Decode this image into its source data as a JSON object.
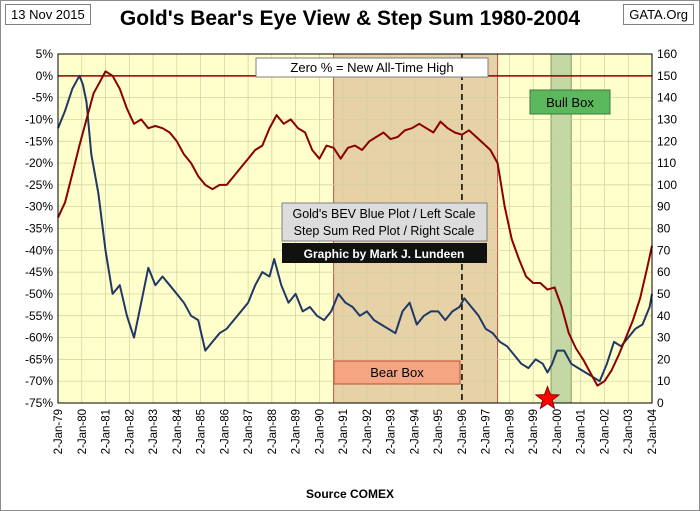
{
  "header": {
    "date": "13 Nov 2015",
    "title": "Gold's Bear's Eye View & Step Sum 1980-2004",
    "source_tag": "GATA.Org"
  },
  "footer": {
    "source": "Source COMEX"
  },
  "annotations": {
    "zero_note": "Zero % = New All-Time High",
    "bull_box": "Bull Box",
    "bear_box": "Bear Box",
    "legend_line1": "Gold's BEV Blue Plot / Left Scale",
    "legend_line2": "Step Sum Red Plot / Right Scale",
    "credit": "Graphic by Mark J. Lundeen"
  },
  "colors": {
    "plot_bg": "#ffffcc",
    "bear_box_fill": "#e6d2a6",
    "bull_box_fill": "#c4d8a6",
    "bev_line": "#1f3864",
    "step_line": "#8b0000",
    "bull_label_bg": "#5cb85c",
    "bear_label_bg": "#f4a582",
    "star": "#ff0000"
  },
  "chart_data": {
    "type": "line",
    "x_ticks": [
      "2-Jan-79",
      "2-Jan-80",
      "2-Jan-81",
      "2-Jan-82",
      "2-Jan-83",
      "2-Jan-84",
      "2-Jan-85",
      "2-Jan-86",
      "2-Jan-87",
      "2-Jan-88",
      "2-Jan-89",
      "2-Jan-90",
      "2-Jan-91",
      "2-Jan-92",
      "2-Jan-93",
      "2-Jan-94",
      "2-Jan-95",
      "2-Jan-96",
      "2-Jan-97",
      "2-Jan-98",
      "2-Jan-99",
      "2-Jan-00",
      "2-Jan-01",
      "2-Jan-02",
      "2-Jan-03",
      "2-Jan-04"
    ],
    "x_range": [
      1979,
      2004
    ],
    "left_axis": {
      "range": [
        -75,
        5
      ],
      "ticks": [
        "5%",
        "0%",
        "-5%",
        "-10%",
        "-15%",
        "-20%",
        "-25%",
        "-30%",
        "-35%",
        "-40%",
        "-45%",
        "-50%",
        "-55%",
        "-60%",
        "-65%",
        "-70%",
        "-75%"
      ]
    },
    "right_axis": {
      "range": [
        0,
        160
      ],
      "ticks": [
        "160",
        "150",
        "140",
        "130",
        "120",
        "110",
        "100",
        "90",
        "80",
        "70",
        "60",
        "50",
        "40",
        "30",
        "20",
        "10",
        "0"
      ]
    },
    "regions": {
      "bear_box": [
        1990.6,
        1997.5
      ],
      "bull_box": [
        1999.75,
        2000.6
      ],
      "dashed_line_x": 1996.0,
      "star": {
        "x": 1999.6,
        "y_pct": -74
      }
    },
    "series": [
      {
        "name": "Gold's BEV",
        "axis": "left",
        "x": [
          1979.0,
          1979.3,
          1979.6,
          1979.9,
          1980.05,
          1980.2,
          1980.4,
          1980.7,
          1981.0,
          1981.3,
          1981.6,
          1981.9,
          1982.2,
          1982.5,
          1982.8,
          1983.1,
          1983.4,
          1983.7,
          1984.0,
          1984.3,
          1984.6,
          1984.9,
          1985.2,
          1985.5,
          1985.8,
          1986.1,
          1986.4,
          1986.7,
          1987.0,
          1987.3,
          1987.6,
          1987.9,
          1988.1,
          1988.4,
          1988.7,
          1989.0,
          1989.3,
          1989.6,
          1989.9,
          1990.2,
          1990.5,
          1990.8,
          1991.1,
          1991.4,
          1991.7,
          1992.0,
          1992.3,
          1992.6,
          1992.9,
          1993.2,
          1993.5,
          1993.8,
          1994.1,
          1994.4,
          1994.7,
          1995.0,
          1995.3,
          1995.6,
          1995.9,
          1996.1,
          1996.4,
          1996.7,
          1997.0,
          1997.3,
          1997.6,
          1997.9,
          1998.2,
          1998.5,
          1998.8,
          1999.1,
          1999.4,
          1999.6,
          1999.8,
          2000.0,
          2000.3,
          2000.6,
          2000.9,
          2001.2,
          2001.5,
          2001.8,
          2002.1,
          2002.4,
          2002.7,
          2003.0,
          2003.3,
          2003.6,
          2003.9,
          2004.0
        ],
        "values": [
          -12,
          -8,
          -3,
          0,
          -2,
          -6,
          -18,
          -27,
          -40,
          -50,
          -48,
          -55,
          -60,
          -52,
          -44,
          -48,
          -46,
          -48,
          -50,
          -52,
          -55,
          -56,
          -63,
          -61,
          -59,
          -58,
          -56,
          -54,
          -52,
          -48,
          -45,
          -46,
          -42,
          -48,
          -52,
          -50,
          -54,
          -53,
          -55,
          -56,
          -54,
          -50,
          -52,
          -53,
          -55,
          -54,
          -56,
          -57,
          -58,
          -59,
          -54,
          -52,
          -57,
          -55,
          -54,
          -54,
          -56,
          -54,
          -53,
          -51,
          -53,
          -55,
          -58,
          -59,
          -61,
          -62,
          -64,
          -66,
          -67,
          -65,
          -66,
          -68,
          -66,
          -63,
          -63,
          -66,
          -67,
          -68,
          -69,
          -70,
          -66,
          -61,
          -62,
          -60,
          -58,
          -57,
          -53,
          -50
        ]
      },
      {
        "name": "Step Sum",
        "axis": "right",
        "x": [
          1979.0,
          1979.3,
          1979.6,
          1979.9,
          1980.2,
          1980.5,
          1980.8,
          1981.0,
          1981.3,
          1981.6,
          1981.9,
          1982.2,
          1982.5,
          1982.8,
          1983.1,
          1983.4,
          1983.7,
          1984.0,
          1984.3,
          1984.6,
          1984.9,
          1985.2,
          1985.5,
          1985.8,
          1986.1,
          1986.4,
          1986.7,
          1987.0,
          1987.3,
          1987.6,
          1987.9,
          1988.2,
          1988.5,
          1988.8,
          1989.1,
          1989.4,
          1989.7,
          1990.0,
          1990.3,
          1990.6,
          1990.9,
          1991.2,
          1991.5,
          1991.8,
          1992.1,
          1992.4,
          1992.7,
          1993.0,
          1993.3,
          1993.6,
          1993.9,
          1994.2,
          1994.5,
          1994.8,
          1995.1,
          1995.4,
          1995.7,
          1996.0,
          1996.3,
          1996.6,
          1996.9,
          1997.2,
          1997.5,
          1997.8,
          1998.1,
          1998.4,
          1998.7,
          1999.0,
          1999.3,
          1999.6,
          1999.9,
          2000.2,
          2000.5,
          2000.8,
          2001.1,
          2001.4,
          2001.7,
          2002.0,
          2002.3,
          2002.6,
          2002.9,
          2003.2,
          2003.5,
          2003.8,
          2004.0
        ],
        "values": [
          85,
          92,
          105,
          118,
          130,
          142,
          148,
          152,
          150,
          144,
          135,
          128,
          130,
          126,
          127,
          126,
          124,
          120,
          114,
          110,
          104,
          100,
          98,
          100,
          100,
          104,
          108,
          112,
          116,
          118,
          126,
          132,
          128,
          130,
          126,
          124,
          116,
          112,
          118,
          117,
          112,
          117,
          118,
          116,
          120,
          122,
          124,
          121,
          122,
          125,
          126,
          128,
          126,
          124,
          129,
          126,
          124,
          123,
          125,
          122,
          119,
          116,
          110,
          90,
          75,
          66,
          58,
          55,
          55,
          52,
          53,
          44,
          32,
          25,
          20,
          14,
          8,
          10,
          15,
          22,
          30,
          38,
          48,
          62,
          72
        ]
      }
    ]
  }
}
